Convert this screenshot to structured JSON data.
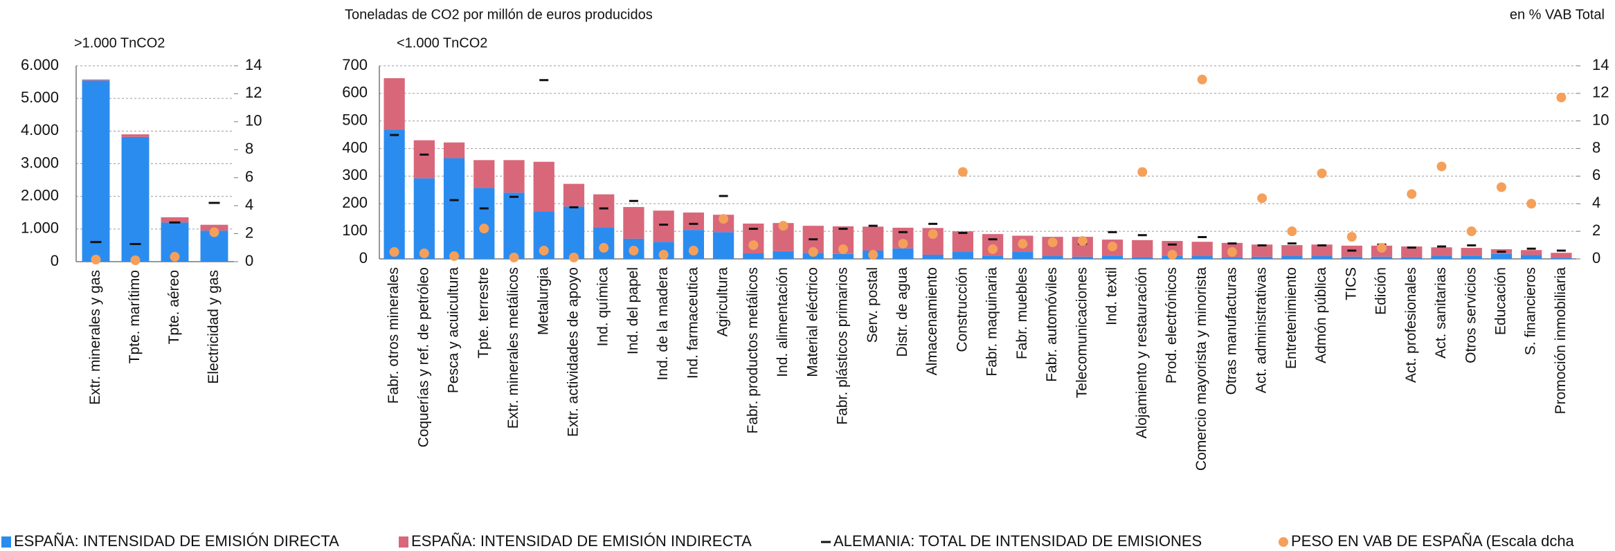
{
  "chart_data": [
    {
      "type": "bar",
      "subtitle": ">1.000 TnCO2",
      "categories": [
        "Extr. minerales y gas",
        "Tpte. marítimo",
        "Tpte. aéreo",
        "Electricidad y gas"
      ],
      "series": [
        {
          "mark": "bar",
          "color": "#2b8cf0",
          "values": [
            5550,
            3820,
            1200,
            950
          ]
        },
        {
          "mark": "bar",
          "color": "#d9677a",
          "values": [
            30,
            80,
            160,
            180
          ]
        },
        {
          "mark": "dash",
          "color": "#111111",
          "values": [
            600,
            540,
            1200,
            1800
          ]
        },
        {
          "mark": "dot",
          "axis": "y2",
          "color": "#f5a05a",
          "values": [
            0.15,
            0.1,
            0.35,
            2.1
          ]
        }
      ],
      "ylim": [
        0,
        6000
      ],
      "yticks": [
        0,
        {
          "value": 1000,
          "label": "1.000"
        },
        {
          "value": 2000,
          "label": "2.000"
        },
        {
          "value": 3000,
          "label": "3.000"
        },
        {
          "value": 4000,
          "label": "4.000"
        },
        {
          "value": 5000,
          "label": "5.000"
        },
        {
          "value": 6000,
          "label": "6.000"
        }
      ],
      "y2lim": [
        0,
        14
      ],
      "y2ticks": [
        0,
        2,
        4,
        6,
        8,
        10,
        12,
        14
      ],
      "grid": true
    },
    {
      "type": "bar",
      "y_label": "Toneladas de CO2 por millón de euros producidos",
      "y2_label": "en % VAB Total",
      "subtitle": "<1.000 TnCO2",
      "categories": [
        "Fabr. otros minerales",
        "Coquerías y ref. de petróleo",
        "Pesca y acuicultura",
        "Tpte. terrestre",
        "Extr. minerales metálicos",
        "Metalurgia",
        "Extr. actividades de apoyo",
        "Ind. química",
        "Ind. del papel",
        "Ind. de la madera",
        "Ind. farmaceutica",
        "Agricultura",
        "Fabr. productos metálicos",
        "Ind. alimentación",
        "Material eléctrico",
        "Fabr. plásticos primarios",
        "Serv. postal",
        "Distr. de agua",
        "Almacenamiento",
        "Construcción",
        "Fabr. maquinaria",
        "Fabr. muebles",
        "Fabr. automóviles",
        "Telecomunicaciones",
        "Ind. textil",
        "Alojamiento y restauración",
        "Prod. electrónicos",
        "Comercio mayorista y minorista",
        "Otras manufacturas",
        "Act. administrativas",
        "Entretenimiento",
        "Admón pública",
        "TICS",
        "Edición",
        "Act. profesionales",
        "Act. sanitarias",
        "Otros servicios",
        "Educación",
        "S. financieros",
        "Promoción inmobiliaria"
      ],
      "series": [
        {
          "name": "ESPAÑA: INTENSIDAD DE EMISIÓN DIRECTA",
          "mark": "bar",
          "color": "#2b8cf0",
          "values": [
            468,
            292,
            365,
            257,
            240,
            172,
            190,
            115,
            73,
            62,
            105,
            97,
            20,
            28,
            22,
            18,
            30,
            38,
            15,
            25,
            12,
            25,
            10,
            8,
            12,
            6,
            12,
            10,
            6,
            8,
            10,
            10,
            8,
            8,
            6,
            10,
            12,
            18,
            14,
            4
          ]
        },
        {
          "name": "ESPAÑA: INTENSIDAD DE EMISIÓN INDIRECTA",
          "mark": "bar",
          "color": "#d9677a",
          "values": [
            187,
            138,
            57,
            101,
            118,
            180,
            82,
            119,
            115,
            113,
            63,
            63,
            108,
            102,
            98,
            100,
            87,
            75,
            97,
            75,
            78,
            59,
            70,
            72,
            58,
            62,
            53,
            52,
            52,
            44,
            40,
            42,
            40,
            40,
            39,
            32,
            28,
            17,
            18,
            18
          ]
        },
        {
          "name": "ALEMANIA: TOTAL DE INTENSIDAD DE EMISIONES",
          "mark": "dash",
          "color": "#111111",
          "values": [
            449,
            378,
            213,
            183,
            225,
            648,
            187,
            183,
            210,
            124,
            127,
            228,
            109,
            124,
            71,
            109,
            120,
            97,
            127,
            94,
            71,
            60,
            60,
            55,
            97,
            86,
            52,
            79,
            56,
            49,
            56,
            49,
            30,
            52,
            41,
            45,
            49,
            26,
            37,
            30
          ]
        },
        {
          "name": "PESO EN VAB DE ESPAÑA (Escala dcha",
          "mark": "dot",
          "axis": "y2",
          "color": "#f5a05a",
          "values": [
            0.5,
            0.4,
            0.2,
            2.2,
            0.1,
            0.6,
            0.1,
            0.8,
            0.6,
            0.3,
            0.6,
            2.9,
            1.0,
            2.4,
            0.5,
            0.7,
            0.3,
            1.1,
            1.8,
            6.3,
            0.7,
            1.1,
            1.2,
            1.3,
            0.9,
            6.3,
            0.3,
            13.0,
            0.5,
            4.4,
            2.0,
            6.2,
            1.6,
            0.8,
            4.7,
            6.7,
            2.0,
            5.2,
            4.0,
            11.7
          ]
        }
      ],
      "ylim": [
        0,
        700
      ],
      "yticks": [
        0,
        100,
        200,
        300,
        400,
        500,
        600,
        700
      ],
      "y2lim": [
        0,
        14
      ],
      "y2ticks": [
        0,
        2,
        4,
        6,
        8,
        10,
        12,
        14
      ],
      "grid": true
    }
  ]
}
